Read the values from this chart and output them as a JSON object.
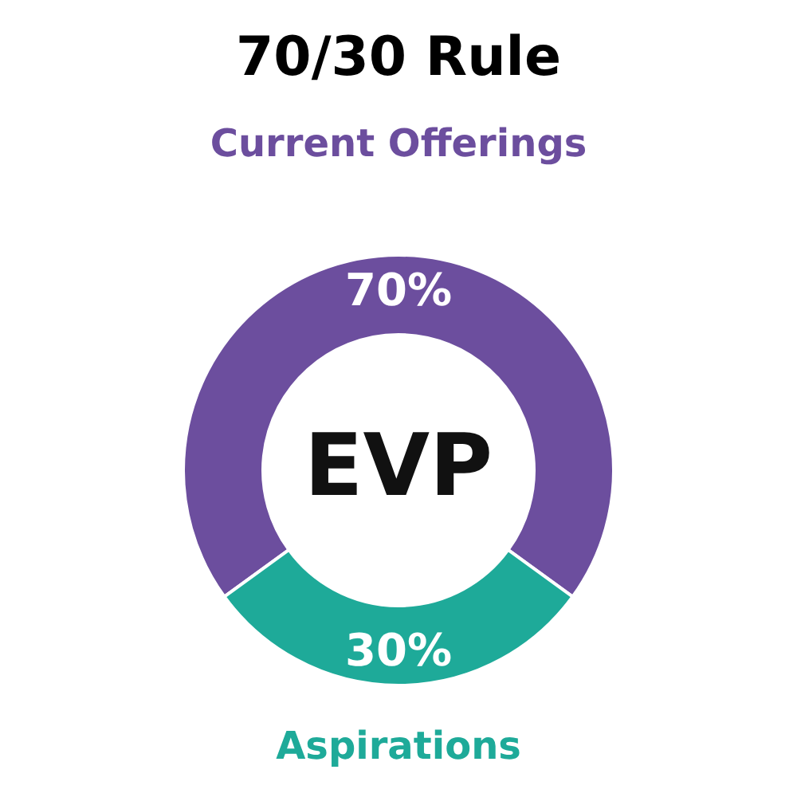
{
  "chart_data": {
    "type": "donut",
    "title": "70/30 Rule",
    "categories": [
      "Current Offerings",
      "Aspirations"
    ],
    "values": [
      70,
      30
    ],
    "colors": [
      "#6c4e9e",
      "#1eaa99"
    ],
    "value_labels": [
      "70%",
      "30%"
    ],
    "annotations": [
      "EVP"
    ],
    "legend": false
  }
}
